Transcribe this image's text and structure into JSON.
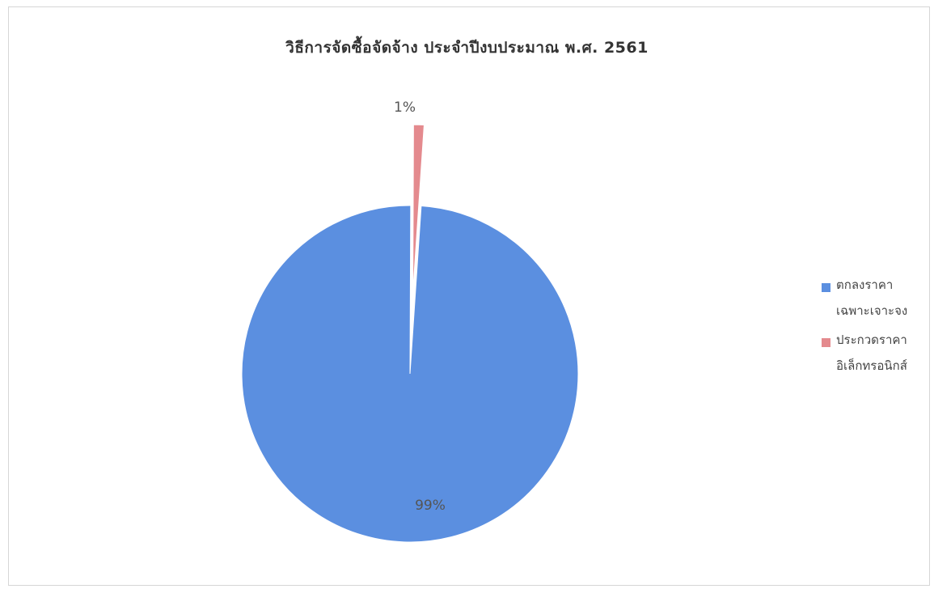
{
  "chart_data": {
    "type": "pie",
    "title": "วิธีการจัดซื้อจัดจ้าง ประจำปีงบประมาณ พ.ศ. 2561",
    "slices": [
      {
        "name": "ตกลงราคา เฉพาะเจาะจง",
        "value": 99,
        "label": "99%",
        "color": "#5B8FE0"
      },
      {
        "name": "ประกวดราคา อิเล็กทรอนิกส์",
        "value": 1,
        "label": "1%",
        "color": "#E48A8E"
      }
    ],
    "legend_position": "right"
  }
}
